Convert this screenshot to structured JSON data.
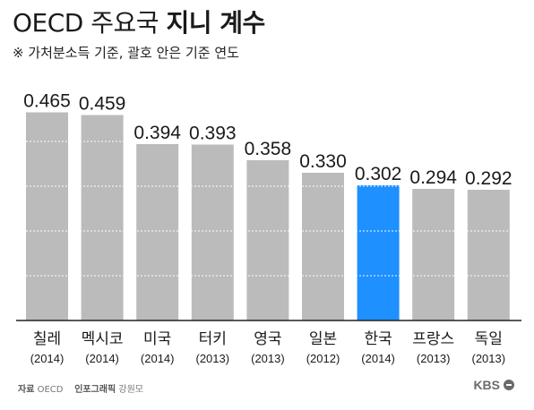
{
  "title_light": "OECD 주요국",
  "title_bold": "지니 계수",
  "subtitle": "※ 가처분소득 기준, 괄호 안은 기준 연도",
  "footer": {
    "source_label": "자료",
    "source_value": "OECD",
    "credit_label": "인포그래픽",
    "credit_value": "강원모",
    "brand": "KBS"
  },
  "colors": {
    "bar": "#bbbbbb",
    "highlight": "#1e90ff",
    "gridline": "#ffffff",
    "baseline": "#222222"
  },
  "chart_data": {
    "type": "bar",
    "title": "OECD 주요국 지니 계수",
    "subtitle": "※ 가처분소득 기준, 괄호 안은 기준 연도",
    "categories": [
      "칠레",
      "멕시코",
      "미국",
      "터키",
      "영국",
      "일본",
      "한국",
      "프랑스",
      "독일"
    ],
    "years": [
      "(2014)",
      "(2014)",
      "(2014)",
      "(2013)",
      "(2013)",
      "(2012)",
      "(2014)",
      "(2013)",
      "(2013)"
    ],
    "values": [
      0.465,
      0.459,
      0.394,
      0.393,
      0.358,
      0.33,
      0.302,
      0.294,
      0.292
    ],
    "value_labels": [
      "0.465",
      "0.459",
      "0.394",
      "0.393",
      "0.358",
      "0.330",
      "0.302",
      "0.294",
      "0.292"
    ],
    "highlight_index": 6,
    "ylim": [
      0,
      0.5
    ],
    "grid": true,
    "legend": "none"
  }
}
